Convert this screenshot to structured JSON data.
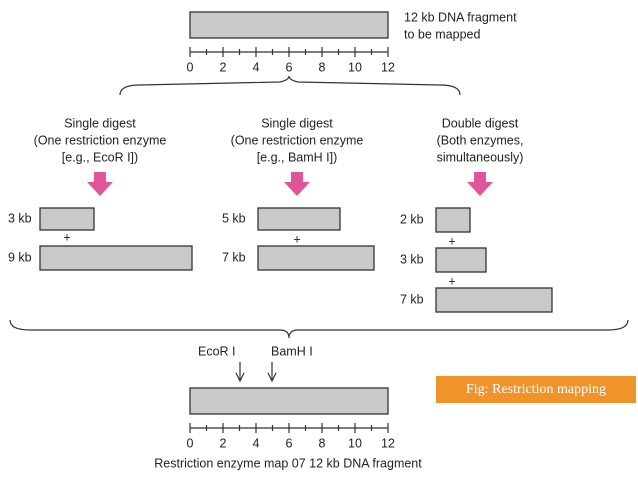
{
  "fragment": {
    "label_lines": [
      "12 kb DNA fragment",
      "to be mapped"
    ]
  },
  "scale_labels": [
    "0",
    "2",
    "4",
    "6",
    "8",
    "10",
    "12"
  ],
  "digests": [
    {
      "title_lines": [
        "Single digest",
        "(One restriction enzyme",
        "[e.g., EcoR I])"
      ],
      "fragments": [
        "3 kb",
        "9 kb"
      ]
    },
    {
      "title_lines": [
        "Single digest",
        "(One restriction enzyme",
        "[e.g., BamH I])"
      ],
      "fragments": [
        "5 kb",
        "7 kb"
      ]
    },
    {
      "title_lines": [
        "Double digest",
        "(Both enzymes,",
        "simultaneously)"
      ],
      "fragments": [
        "2 kb",
        "3 kb",
        "7 kb"
      ]
    }
  ],
  "separator": "+",
  "sites": [
    "EcoR I",
    "BamH I"
  ],
  "caption": "Restriction enzyme map 07 12 kb DNA fragment",
  "figure_label": "Fig: Restriction mapping"
}
